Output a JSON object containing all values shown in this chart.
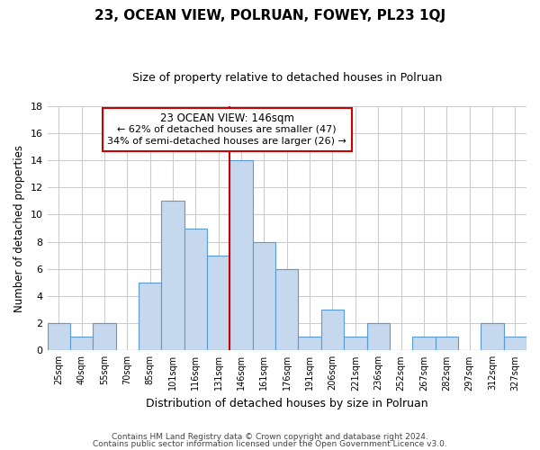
{
  "title": "23, OCEAN VIEW, POLRUAN, FOWEY, PL23 1QJ",
  "subtitle": "Size of property relative to detached houses in Polruan",
  "xlabel": "Distribution of detached houses by size in Polruan",
  "ylabel": "Number of detached properties",
  "bin_labels": [
    "25sqm",
    "40sqm",
    "55sqm",
    "70sqm",
    "85sqm",
    "101sqm",
    "116sqm",
    "131sqm",
    "146sqm",
    "161sqm",
    "176sqm",
    "191sqm",
    "206sqm",
    "221sqm",
    "236sqm",
    "252sqm",
    "267sqm",
    "282sqm",
    "297sqm",
    "312sqm",
    "327sqm"
  ],
  "bin_values": [
    2,
    1,
    2,
    0,
    5,
    11,
    9,
    7,
    14,
    8,
    6,
    1,
    3,
    1,
    2,
    0,
    1,
    1,
    0,
    2,
    1
  ],
  "highlight_index": 8,
  "bar_color": "#c5d8ed",
  "bar_edge_color": "#5b9bd5",
  "highlight_line_color": "#cc0000",
  "annotation_box_edge": "#cc0000",
  "annotation_text_line1": "23 OCEAN VIEW: 146sqm",
  "annotation_text_line2": "← 62% of detached houses are smaller (47)",
  "annotation_text_line3": "34% of semi-detached houses are larger (26) →",
  "ylim": [
    0,
    18
  ],
  "yticks": [
    0,
    2,
    4,
    6,
    8,
    10,
    12,
    14,
    16,
    18
  ],
  "footer_line1": "Contains HM Land Registry data © Crown copyright and database right 2024.",
  "footer_line2": "Contains public sector information licensed under the Open Government Licence v3.0.",
  "bg_color": "#ffffff",
  "grid_color": "#cccccc",
  "title_fontsize": 11,
  "subtitle_fontsize": 9
}
